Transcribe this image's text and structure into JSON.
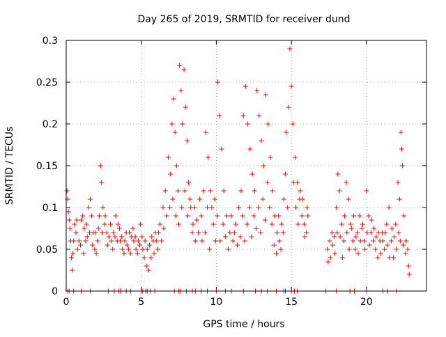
{
  "chart_data": {
    "type": "scatter",
    "title": "Day 265 of 2019, SRMTID for receiver dund",
    "xlabel": "GPS time / hours",
    "ylabel": "SRMTID / TECUs",
    "xlim": [
      0,
      24
    ],
    "ylim": [
      0,
      0.3
    ],
    "grid": true,
    "marker": "+",
    "series_color": "#ff0000",
    "xticks": [
      {
        "value": 0,
        "label": "0"
      },
      {
        "value": 5,
        "label": "5"
      },
      {
        "value": 10,
        "label": "10"
      },
      {
        "value": 15,
        "label": "15"
      },
      {
        "value": 20,
        "label": "20"
      }
    ],
    "yticks": [
      {
        "value": 0,
        "label": "0"
      },
      {
        "value": 0.05,
        "label": "0.05"
      },
      {
        "value": 0.1,
        "label": "0.1"
      },
      {
        "value": 0.15,
        "label": "0.15"
      },
      {
        "value": 0.2,
        "label": "0.2"
      },
      {
        "value": 0.25,
        "label": "0.25"
      },
      {
        "value": 0.3,
        "label": "0.3"
      }
    ],
    "points": [
      [
        0.05,
        0.12
      ],
      [
        0.1,
        0.11
      ],
      [
        0.15,
        0.095
      ],
      [
        0.2,
        0.085
      ],
      [
        0.3,
        0.06
      ],
      [
        0.35,
        0.04
      ],
      [
        0.4,
        0.025
      ],
      [
        0.5,
        0.06
      ],
      [
        0.55,
        0.08
      ],
      [
        0.65,
        0.07
      ],
      [
        0.75,
        0.05
      ],
      [
        0.85,
        0.06
      ],
      [
        1.0,
        0.085
      ],
      [
        1.1,
        0.09
      ],
      [
        1.2,
        0.075
      ],
      [
        1.3,
        0.06
      ],
      [
        1.4,
        0.065
      ],
      [
        1.5,
        0.1
      ],
      [
        1.6,
        0.11
      ],
      [
        1.7,
        0.09
      ],
      [
        1.8,
        0.07
      ],
      [
        1.9,
        0.05
      ],
      [
        2.0,
        0.045
      ],
      [
        2.1,
        0.06
      ],
      [
        2.2,
        0.09
      ],
      [
        2.3,
        0.15
      ],
      [
        2.35,
        0.13
      ],
      [
        2.45,
        0.1
      ],
      [
        2.55,
        0.08
      ],
      [
        2.7,
        0.07
      ],
      [
        2.85,
        0.065
      ],
      [
        3.0,
        0.06
      ],
      [
        3.15,
        0.07
      ],
      [
        3.3,
        0.09
      ],
      [
        3.45,
        0.08
      ],
      [
        3.6,
        0.06
      ],
      [
        3.75,
        0.05
      ],
      [
        3.9,
        0.06
      ],
      [
        4.05,
        0.055
      ],
      [
        4.2,
        0.07
      ],
      [
        4.35,
        0.065
      ],
      [
        4.5,
        0.06
      ],
      [
        4.65,
        0.05
      ],
      [
        4.8,
        0.06
      ],
      [
        4.95,
        0.08
      ],
      [
        5.1,
        0.05
      ],
      [
        5.2,
        0.04
      ],
      [
        5.35,
        0.03
      ],
      [
        5.5,
        0.025
      ],
      [
        5.65,
        0.04
      ],
      [
        5.8,
        0.06
      ],
      [
        5.95,
        0.07
      ],
      [
        6.1,
        0.05
      ],
      [
        6.25,
        0.08
      ],
      [
        6.45,
        0.1
      ],
      [
        6.6,
        0.12
      ],
      [
        6.8,
        0.16
      ],
      [
        6.95,
        0.14
      ],
      [
        7.05,
        0.2
      ],
      [
        7.15,
        0.23
      ],
      [
        7.25,
        0.19
      ],
      [
        7.35,
        0.15
      ],
      [
        7.45,
        0.12
      ],
      [
        7.55,
        0.27
      ],
      [
        7.65,
        0.24
      ],
      [
        7.75,
        0.2
      ],
      [
        7.85,
        0.265
      ],
      [
        7.95,
        0.22
      ],
      [
        8.05,
        0.18
      ],
      [
        8.15,
        0.13
      ],
      [
        8.3,
        0.1
      ],
      [
        8.45,
        0.08
      ],
      [
        8.6,
        0.06
      ],
      [
        8.8,
        0.07
      ],
      [
        9.0,
        0.09
      ],
      [
        9.15,
        0.12
      ],
      [
        9.3,
        0.19
      ],
      [
        9.45,
        0.16
      ],
      [
        9.6,
        0.12
      ],
      [
        9.8,
        0.08
      ],
      [
        9.95,
        0.06
      ],
      [
        10.1,
        0.25
      ],
      [
        10.2,
        0.21
      ],
      [
        10.35,
        0.17
      ],
      [
        10.5,
        0.12
      ],
      [
        10.7,
        0.09
      ],
      [
        10.9,
        0.07
      ],
      [
        11.1,
        0.06
      ],
      [
        11.3,
        0.08
      ],
      [
        11.5,
        0.1
      ],
      [
        11.65,
        0.12
      ],
      [
        11.8,
        0.21
      ],
      [
        11.95,
        0.245
      ],
      [
        12.1,
        0.2
      ],
      [
        12.25,
        0.17
      ],
      [
        12.4,
        0.14
      ],
      [
        12.55,
        0.12
      ],
      [
        12.7,
        0.24
      ],
      [
        12.85,
        0.21
      ],
      [
        13.0,
        0.18
      ],
      [
        13.15,
        0.15
      ],
      [
        13.3,
        0.235
      ],
      [
        13.45,
        0.2
      ],
      [
        13.6,
        0.16
      ],
      [
        13.75,
        0.12
      ],
      [
        13.9,
        0.09
      ],
      [
        14.05,
        0.07
      ],
      [
        14.2,
        0.06
      ],
      [
        14.35,
        0.08
      ],
      [
        14.5,
        0.11
      ],
      [
        14.65,
        0.19
      ],
      [
        14.8,
        0.22
      ],
      [
        14.9,
        0.29
      ],
      [
        15.0,
        0.245
      ],
      [
        15.1,
        0.2
      ],
      [
        15.25,
        0.16
      ],
      [
        15.4,
        0.13
      ],
      [
        15.55,
        0.11
      ],
      [
        15.7,
        0.09
      ],
      [
        15.85,
        0.08
      ],
      [
        16.0,
        0.07
      ],
      [
        16.1,
        0.09
      ],
      [
        17.4,
        0.05
      ],
      [
        17.55,
        0.06
      ],
      [
        17.7,
        0.07
      ],
      [
        17.85,
        0.065
      ],
      [
        18.0,
        0.1
      ],
      [
        18.1,
        0.14
      ],
      [
        18.2,
        0.12
      ],
      [
        18.35,
        0.08
      ],
      [
        18.5,
        0.06
      ],
      [
        18.65,
        0.13
      ],
      [
        18.8,
        0.11
      ],
      [
        18.95,
        0.08
      ],
      [
        19.1,
        0.06
      ],
      [
        19.25,
        0.05
      ],
      [
        19.4,
        0.07
      ],
      [
        19.55,
        0.09
      ],
      [
        19.7,
        0.075
      ],
      [
        19.85,
        0.06
      ],
      [
        20.0,
        0.12
      ],
      [
        20.15,
        0.09
      ],
      [
        20.3,
        0.07
      ],
      [
        20.45,
        0.06
      ],
      [
        20.6,
        0.05
      ],
      [
        20.75,
        0.04
      ],
      [
        20.9,
        0.06
      ],
      [
        21.05,
        0.07
      ],
      [
        21.2,
        0.05
      ],
      [
        21.35,
        0.08
      ],
      [
        21.5,
        0.1
      ],
      [
        21.65,
        0.06
      ],
      [
        21.8,
        0.04
      ],
      [
        21.95,
        0.08
      ],
      [
        22.1,
        0.13
      ],
      [
        22.2,
        0.11
      ],
      [
        22.3,
        0.19
      ],
      [
        22.35,
        0.17
      ],
      [
        22.4,
        0.15
      ],
      [
        22.5,
        0.09
      ],
      [
        22.65,
        0.06
      ],
      [
        22.8,
        0.03
      ],
      [
        22.85,
        0.02
      ],
      [
        0.25,
        0.075
      ],
      [
        0.45,
        0.045
      ],
      [
        0.7,
        0.085
      ],
      [
        0.95,
        0.055
      ],
      [
        1.15,
        0.045
      ],
      [
        1.35,
        0.08
      ],
      [
        1.55,
        0.07
      ],
      [
        1.75,
        0.055
      ],
      [
        1.95,
        0.07
      ],
      [
        2.15,
        0.075
      ],
      [
        2.4,
        0.07
      ],
      [
        2.6,
        0.09
      ],
      [
        2.75,
        0.055
      ],
      [
        2.95,
        0.08
      ],
      [
        3.1,
        0.05
      ],
      [
        3.25,
        0.065
      ],
      [
        3.4,
        0.06
      ],
      [
        3.55,
        0.075
      ],
      [
        3.7,
        0.065
      ],
      [
        3.85,
        0.045
      ],
      [
        4.0,
        0.07
      ],
      [
        4.15,
        0.05
      ],
      [
        4.3,
        0.045
      ],
      [
        4.45,
        0.075
      ],
      [
        4.6,
        0.065
      ],
      [
        4.75,
        0.045
      ],
      [
        4.9,
        0.055
      ],
      [
        5.05,
        0.065
      ],
      [
        5.25,
        0.06
      ],
      [
        5.4,
        0.05
      ],
      [
        5.55,
        0.055
      ],
      [
        5.7,
        0.065
      ],
      [
        5.85,
        0.045
      ],
      [
        6.0,
        0.06
      ],
      [
        6.15,
        0.07
      ],
      [
        6.35,
        0.06
      ],
      [
        6.5,
        0.075
      ],
      [
        6.7,
        0.09
      ],
      [
        6.9,
        0.1
      ],
      [
        7.1,
        0.11
      ],
      [
        7.3,
        0.09
      ],
      [
        7.5,
        0.08
      ],
      [
        7.7,
        0.1
      ],
      [
        7.9,
        0.12
      ],
      [
        8.1,
        0.09
      ],
      [
        8.25,
        0.11
      ],
      [
        8.4,
        0.07
      ],
      [
        8.55,
        0.1
      ],
      [
        8.7,
        0.085
      ],
      [
        8.9,
        0.11
      ],
      [
        9.05,
        0.06
      ],
      [
        9.25,
        0.07
      ],
      [
        9.4,
        0.1
      ],
      [
        9.55,
        0.05
      ],
      [
        9.7,
        0.1
      ],
      [
        9.9,
        0.11
      ],
      [
        10.05,
        0.09
      ],
      [
        10.25,
        0.06
      ],
      [
        10.45,
        0.08
      ],
      [
        10.6,
        0.065
      ],
      [
        10.8,
        0.05
      ],
      [
        11.0,
        0.09
      ],
      [
        11.2,
        0.07
      ],
      [
        11.4,
        0.055
      ],
      [
        11.6,
        0.065
      ],
      [
        11.75,
        0.09
      ],
      [
        11.9,
        0.06
      ],
      [
        12.05,
        0.08
      ],
      [
        12.2,
        0.1
      ],
      [
        12.35,
        0.065
      ],
      [
        12.5,
        0.09
      ],
      [
        12.65,
        0.075
      ],
      [
        12.8,
        0.1
      ],
      [
        12.95,
        0.07
      ],
      [
        13.1,
        0.11
      ],
      [
        13.25,
        0.085
      ],
      [
        13.4,
        0.13
      ],
      [
        13.55,
        0.1
      ],
      [
        13.7,
        0.08
      ],
      [
        13.85,
        0.055
      ],
      [
        14.0,
        0.045
      ],
      [
        14.15,
        0.09
      ],
      [
        14.3,
        0.05
      ],
      [
        14.45,
        0.07
      ],
      [
        14.6,
        0.14
      ],
      [
        14.75,
        0.1
      ],
      [
        15.15,
        0.13
      ],
      [
        15.3,
        0.1
      ],
      [
        15.45,
        0.08
      ],
      [
        15.6,
        0.12
      ],
      [
        15.75,
        0.11
      ],
      [
        15.9,
        0.065
      ],
      [
        16.05,
        0.1
      ],
      [
        17.45,
        0.035
      ],
      [
        17.6,
        0.04
      ],
      [
        17.75,
        0.055
      ],
      [
        17.9,
        0.045
      ],
      [
        18.05,
        0.07
      ],
      [
        18.25,
        0.065
      ],
      [
        18.4,
        0.04
      ],
      [
        18.55,
        0.09
      ],
      [
        18.7,
        0.07
      ],
      [
        18.85,
        0.05
      ],
      [
        19.0,
        0.075
      ],
      [
        19.15,
        0.09
      ],
      [
        19.3,
        0.065
      ],
      [
        19.45,
        0.045
      ],
      [
        19.6,
        0.06
      ],
      [
        19.75,
        0.08
      ],
      [
        19.9,
        0.05
      ],
      [
        20.05,
        0.07
      ],
      [
        20.2,
        0.055
      ],
      [
        20.35,
        0.085
      ],
      [
        20.5,
        0.075
      ],
      [
        20.65,
        0.065
      ],
      [
        20.8,
        0.07
      ],
      [
        20.95,
        0.045
      ],
      [
        21.1,
        0.06
      ],
      [
        21.25,
        0.07
      ],
      [
        21.4,
        0.055
      ],
      [
        21.55,
        0.04
      ],
      [
        21.7,
        0.075
      ],
      [
        21.85,
        0.065
      ],
      [
        22.0,
        0.05
      ],
      [
        22.15,
        0.07
      ],
      [
        22.25,
        0.06
      ],
      [
        22.45,
        0.055
      ],
      [
        22.6,
        0.045
      ],
      [
        22.75,
        0.05
      ]
    ],
    "zero_points_x": [
      0.1,
      0.2,
      0.5,
      1.0,
      1.6,
      2.8,
      3.2,
      3.5,
      3.6,
      4.0,
      4.3,
      5.0,
      5.1,
      5.3,
      5.4,
      5.6,
      5.9,
      7.2,
      7.5,
      7.6,
      8.0,
      8.4,
      8.6,
      9.0,
      9.4,
      10.0,
      10.6,
      11.0,
      11.8,
      12.6,
      13.0,
      13.4,
      14.0,
      14.5,
      14.6,
      15.0,
      15.2,
      15.4,
      17.3,
      18.0,
      18.9,
      19.2,
      20.0,
      21.1,
      21.4,
      22.0
    ]
  }
}
